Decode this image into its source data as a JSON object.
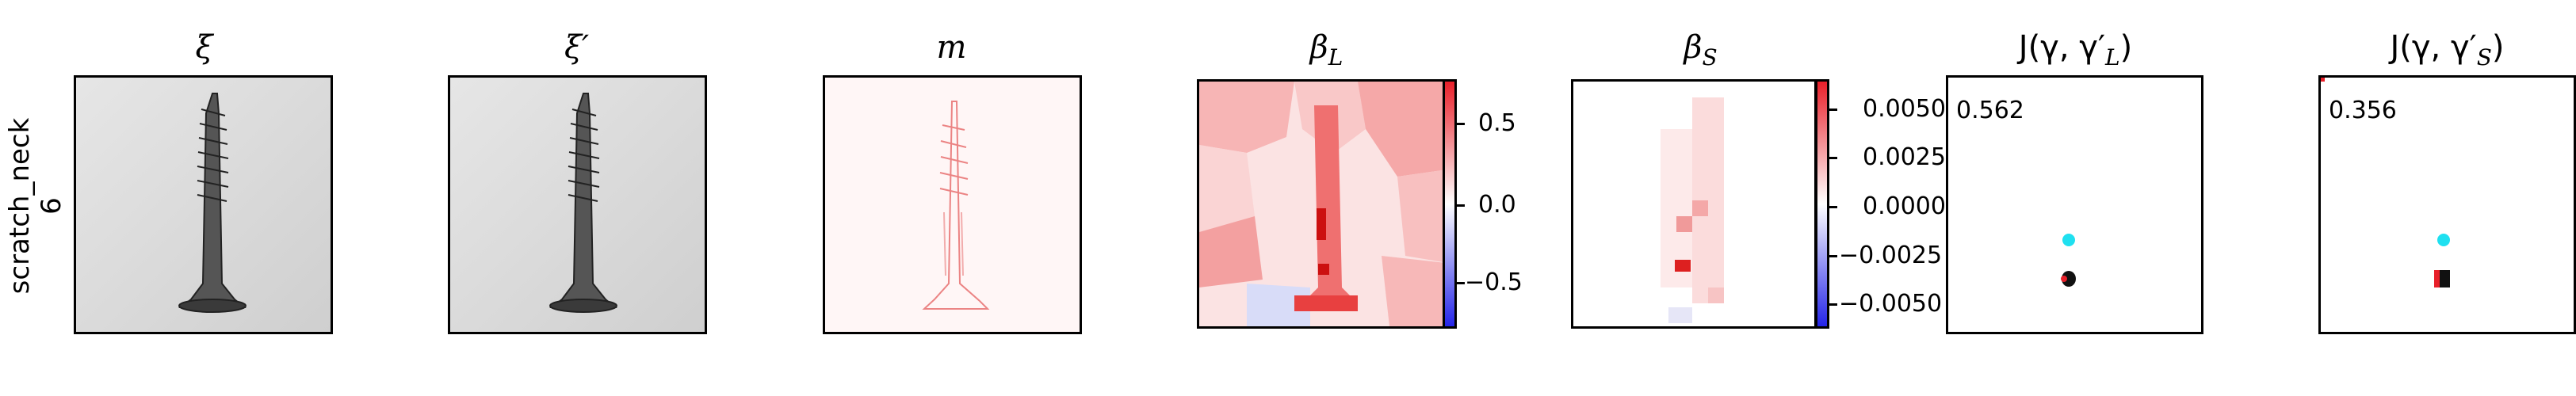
{
  "row_label": {
    "line1": "scratch_neck",
    "line2": "6"
  },
  "titles": {
    "xi": "ξ",
    "xi_prime": "ξ′",
    "m": "m",
    "beta_L": "β",
    "beta_L_sub": "L",
    "beta_S": "β",
    "beta_S_sub": "S",
    "J_L": "J(γ, γ′",
    "J_L_sub": "L",
    "J_S": "J(γ, γ′",
    "J_S_sub": "S",
    "close": ")"
  },
  "colorbar_L": {
    "ticks": [
      "0.5",
      "0.0",
      "−0.5"
    ]
  },
  "colorbar_S": {
    "ticks": [
      "0.0050",
      "0.0025",
      "0.0000",
      "−0.0025",
      "−0.0050"
    ]
  },
  "scores": {
    "J_L": "0.562",
    "J_S": "0.356"
  },
  "colors": {
    "positive": "#e8202a",
    "negative": "#2424e8",
    "neutral": "#ffffff",
    "cyan": "#1fe0f0"
  }
}
